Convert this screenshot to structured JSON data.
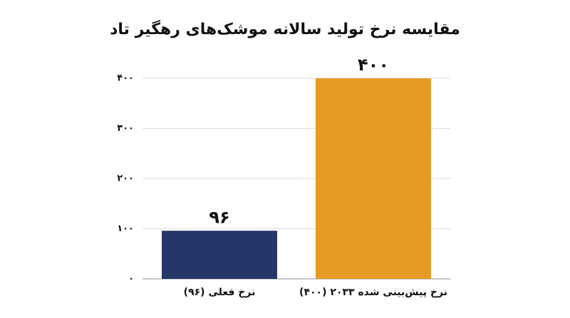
{
  "chart_data": {
    "type": "bar",
    "title": "مقایسه نرخ تولید سالانه موشک‌های رهگیر تاد",
    "categories": [
      "نرخ فعلی (۹۶)",
      "نرخ پیش‌بینی شده ۲۰۳۳ (۴۰۰)"
    ],
    "values": [
      96,
      400
    ],
    "value_labels": [
      "۹۶",
      "۴۰۰"
    ],
    "colors": [
      "#253668",
      "#e59c24"
    ],
    "ylim": [
      0,
      400
    ],
    "yticks": [
      {
        "value": 0,
        "label": "۰"
      },
      {
        "value": 100,
        "label": "۱۰۰"
      },
      {
        "value": 200,
        "label": "۲۰۰"
      },
      {
        "value": 300,
        "label": "۳۰۰"
      },
      {
        "value": 400,
        "label": "۴۰۰"
      }
    ],
    "grid": true
  }
}
